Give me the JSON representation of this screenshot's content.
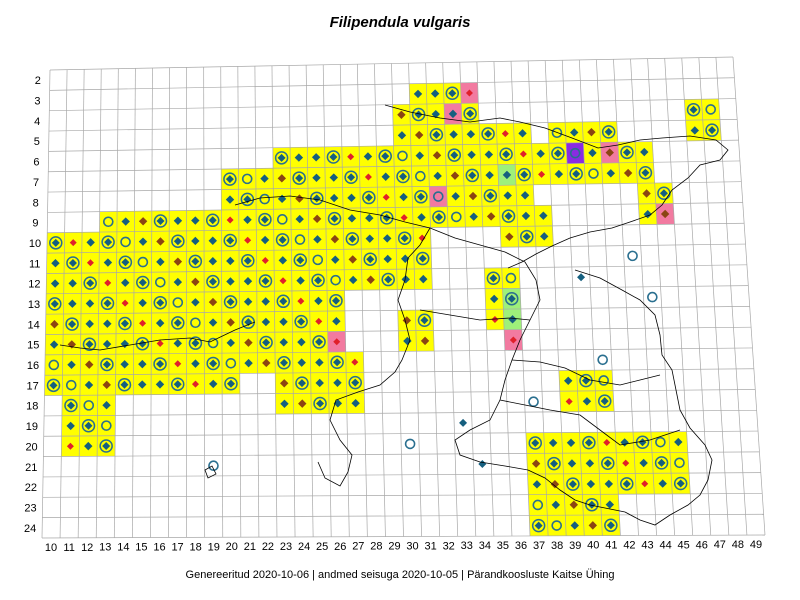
{
  "title": "Filipendula vulgaris",
  "footer": {
    "generated": "Genereeritud 2020-10-06",
    "data_state": "andmed seisuga 2020-10-05",
    "organization": "Pärandkoosluste Kaitse Ühing",
    "separator": "|"
  },
  "grid": {
    "columns": [
      10,
      11,
      12,
      13,
      14,
      15,
      16,
      17,
      18,
      19,
      20,
      21,
      22,
      23,
      24,
      25,
      26,
      27,
      28,
      29,
      30,
      31,
      32,
      33,
      34,
      35,
      36,
      37,
      38,
      39,
      40,
      41,
      42,
      43,
      44,
      45,
      46,
      47,
      48,
      49
    ],
    "rows": [
      2,
      3,
      4,
      5,
      6,
      7,
      8,
      9,
      10,
      11,
      12,
      13,
      14,
      15,
      16,
      17,
      18,
      19,
      20,
      21,
      22,
      23,
      24
    ]
  },
  "colors": {
    "occupied_cell": "#ffff00",
    "pink_cell": "#f27aa0",
    "green_cell": "#9ef07a",
    "purple_cell": "#8a2be2",
    "diamond_teal": "#155f7f",
    "diamond_brown": "#8b4513",
    "diamond_red": "#e0202b",
    "circle_teal": "#2a6f8f",
    "grid_line": "#a8a8a8",
    "border_line": "#000000"
  },
  "icons": [
    "filled-diamond-icon",
    "hollow-circle-icon",
    "diamond-in-circle-icon",
    "crossed-circle-icon",
    "cross-icon"
  ]
}
